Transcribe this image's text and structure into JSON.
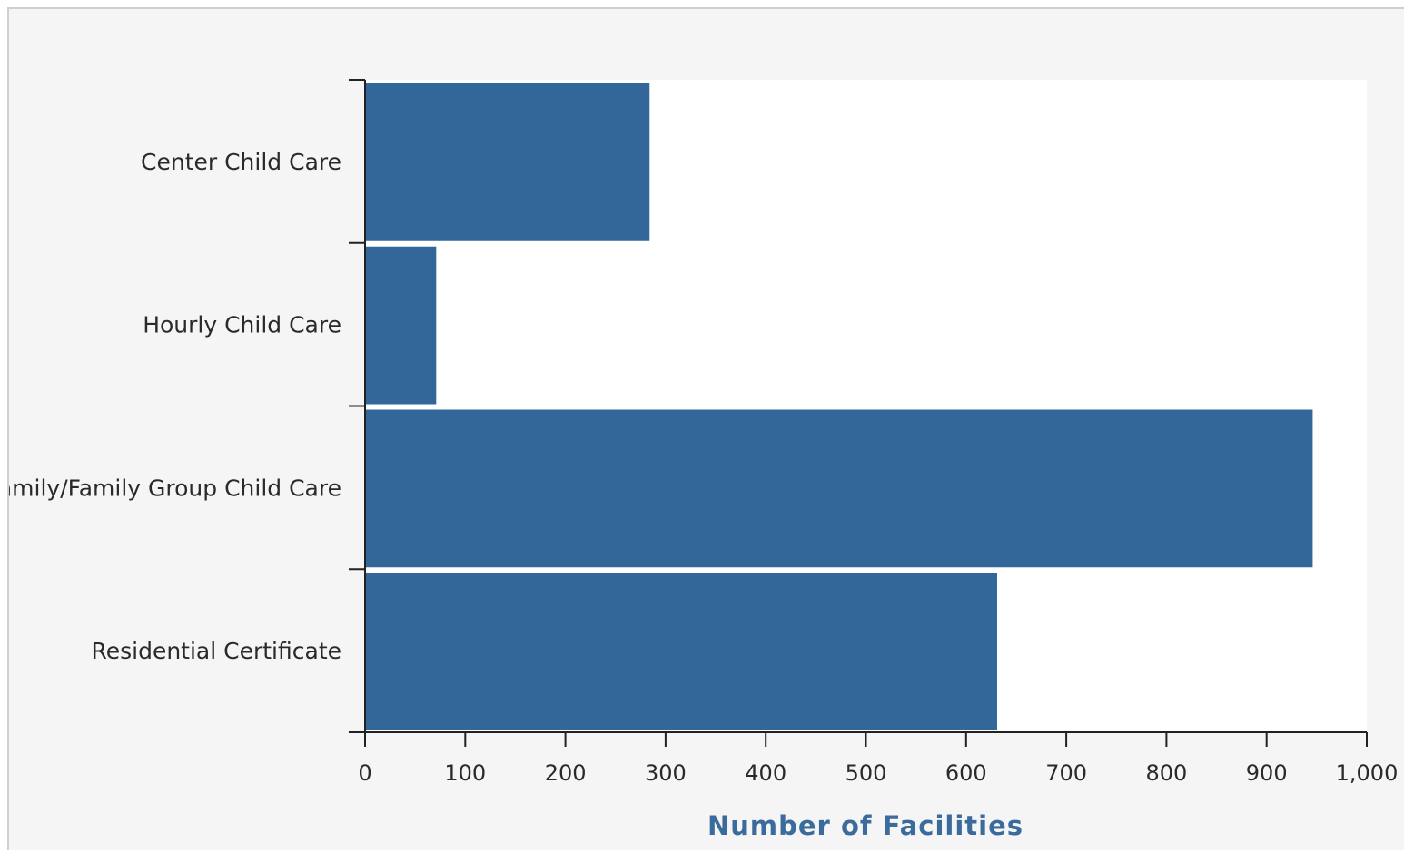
{
  "chart_data": {
    "type": "bar",
    "orientation": "horizontal",
    "categories": [
      "Center Child Care",
      "Hourly Child Care",
      "Family/Family Group Child Care",
      "Residential Certificate"
    ],
    "values": [
      284,
      71,
      946,
      631
    ],
    "title": "",
    "xlabel": "Number of Facilities",
    "ylabel": "",
    "xlim": [
      0,
      1000
    ],
    "x_ticks": [
      "0",
      "100",
      "200",
      "300",
      "400",
      "500",
      "600",
      "700",
      "800",
      "900",
      "1,000"
    ],
    "grid": false,
    "bar_color": "#336699"
  },
  "colors": {
    "bar": "#336699",
    "plot_background": "#ffffff",
    "page_background": "#f5f5f5",
    "axis_title": "#3a6b9c"
  }
}
